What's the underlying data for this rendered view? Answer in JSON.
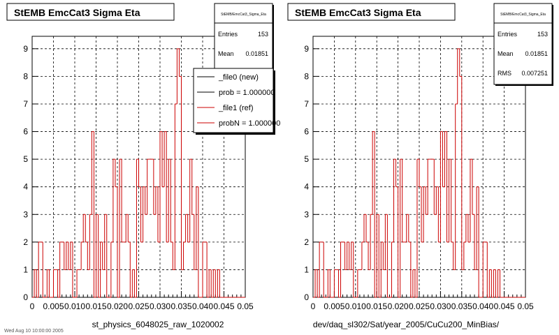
{
  "chart_data": [
    {
      "type": "histogram",
      "title": "StEMB EmcCat3 Sigma Eta",
      "xlabel": "st_physics_6048025_raw_1020002",
      "ylabel": "",
      "xlim": [
        0,
        0.05
      ],
      "ylim": [
        0,
        9.45
      ],
      "x_ticks": [
        "0",
        "0.005",
        "0.010",
        "0.015",
        "0.020",
        "0.025",
        "0.030",
        "0.035",
        "0.040",
        "0.045",
        "0.05"
      ],
      "y_ticks": [
        "0",
        "1",
        "2",
        "3",
        "4",
        "5",
        "6",
        "7",
        "8",
        "9"
      ],
      "grid": true,
      "stats": {
        "name": "StEMB/EmcCat3_Sigma_Eta",
        "entries_label": "Entries",
        "entries": "153",
        "mean_label": "Mean",
        "mean": "0.01851"
      },
      "legend": {
        "position": "top-right",
        "entries": [
          {
            "label": "_file0 (new)",
            "color": "#000000"
          },
          {
            "label": "prob = 1.000000",
            "color": "#000000"
          },
          {
            "label": "_file1 (ref)",
            "color": "#cc0000"
          },
          {
            "label": "probN = 1.000000",
            "color": "#cc0000"
          }
        ]
      },
      "bin_width": 0.0005,
      "bin_start": 0.0,
      "series": [
        {
          "name": "_file1 (ref)",
          "color": "#cc0000",
          "values": [
            0,
            1,
            0,
            2,
            2,
            0,
            0,
            1,
            0,
            0,
            1,
            1,
            0,
            2,
            2,
            1,
            2,
            1,
            2,
            0,
            0,
            1,
            1,
            2,
            3,
            2,
            1,
            3,
            6,
            0,
            3,
            0,
            2,
            1,
            3,
            0,
            0,
            2,
            5,
            4,
            0,
            5,
            2,
            2,
            3,
            2,
            0,
            1,
            0,
            5,
            4,
            2,
            4,
            3,
            5,
            5,
            5,
            3,
            4,
            2,
            6,
            4,
            6,
            2,
            5,
            2,
            1,
            7,
            9,
            8,
            1,
            2,
            3,
            2,
            5,
            3,
            1,
            4,
            0,
            0,
            2,
            2,
            0,
            1,
            0,
            1,
            0,
            1,
            0,
            0,
            0,
            0,
            0,
            0,
            0,
            0,
            0,
            0,
            0,
            0
          ]
        }
      ]
    },
    {
      "type": "histogram",
      "title": "StEMB EmcCat3 Sigma Eta",
      "xlabel": "dev/daq_sl302/Sat/year_2005/CuCu200_MinBias/",
      "ylabel": "",
      "xlim": [
        0,
        0.05
      ],
      "ylim": [
        0,
        9.45
      ],
      "x_ticks": [
        "0",
        "0.005",
        "0.010",
        "0.015",
        "0.020",
        "0.025",
        "0.030",
        "0.035",
        "0.040",
        "0.045",
        "0.05"
      ],
      "y_ticks": [
        "0",
        "1",
        "2",
        "3",
        "4",
        "5",
        "6",
        "7",
        "8",
        "9"
      ],
      "grid": true,
      "stats": {
        "name": "StEMB/EmcCat3_Sigma_Eta",
        "entries_label": "Entries",
        "entries": "153",
        "mean_label": "Mean",
        "mean": "0.01851",
        "rms_label": "RMS",
        "rms": "0.007251"
      },
      "bin_width": 0.0005,
      "bin_start": 0.0,
      "series": [
        {
          "name": "_file1 (ref)",
          "color": "#cc0000",
          "values": [
            0,
            1,
            0,
            2,
            2,
            0,
            0,
            1,
            0,
            0,
            1,
            1,
            0,
            2,
            2,
            1,
            2,
            1,
            2,
            0,
            0,
            1,
            1,
            2,
            3,
            2,
            1,
            3,
            6,
            0,
            3,
            0,
            2,
            1,
            3,
            0,
            0,
            2,
            5,
            4,
            0,
            5,
            2,
            2,
            3,
            2,
            0,
            1,
            0,
            5,
            4,
            2,
            4,
            3,
            5,
            5,
            5,
            3,
            4,
            2,
            6,
            4,
            6,
            2,
            5,
            2,
            1,
            7,
            9,
            8,
            1,
            2,
            3,
            2,
            5,
            3,
            1,
            4,
            0,
            0,
            2,
            2,
            0,
            1,
            0,
            1,
            0,
            1,
            0,
            0,
            0,
            0,
            0,
            0,
            0,
            0,
            0,
            0,
            0,
            0
          ]
        }
      ]
    }
  ],
  "footer_text": "Wed Aug 10 10:00:00 2005"
}
